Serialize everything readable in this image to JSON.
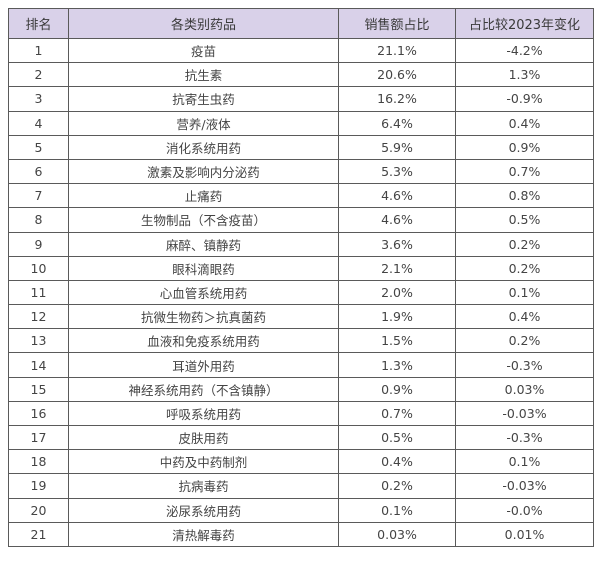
{
  "table": {
    "headers": [
      "排名",
      "各类别药品",
      "销售额占比",
      "占比较2023年变化"
    ],
    "rows": [
      {
        "rank": "1",
        "category": "疫苗",
        "share": "21.1%",
        "change": "-4.2%"
      },
      {
        "rank": "2",
        "category": "抗生素",
        "share": "20.6%",
        "change": "1.3%"
      },
      {
        "rank": "3",
        "category": "抗寄生虫药",
        "share": "16.2%",
        "change": "-0.9%"
      },
      {
        "rank": "4",
        "category": "营养/液体",
        "share": "6.4%",
        "change": "0.4%"
      },
      {
        "rank": "5",
        "category": "消化系统用药",
        "share": "5.9%",
        "change": "0.9%"
      },
      {
        "rank": "6",
        "category": "激素及影响内分泌药",
        "share": "5.3%",
        "change": "0.7%"
      },
      {
        "rank": "7",
        "category": "止痛药",
        "share": "4.6%",
        "change": "0.8%"
      },
      {
        "rank": "8",
        "category": "生物制品（不含疫苗）",
        "share": "4.6%",
        "change": "0.5%"
      },
      {
        "rank": "9",
        "category": "麻醉、镇静药",
        "share": "3.6%",
        "change": "0.2%"
      },
      {
        "rank": "10",
        "category": "眼科滴眼药",
        "share": "2.1%",
        "change": "0.2%"
      },
      {
        "rank": "11",
        "category": "心血管系统用药",
        "share": "2.0%",
        "change": "0.1%"
      },
      {
        "rank": "12",
        "category": "抗微生物药＞抗真菌药",
        "share": "1.9%",
        "change": "0.4%"
      },
      {
        "rank": "13",
        "category": "血液和免疫系统用药",
        "share": "1.5%",
        "change": "0.2%"
      },
      {
        "rank": "14",
        "category": "耳道外用药",
        "share": "1.3%",
        "change": "-0.3%"
      },
      {
        "rank": "15",
        "category": "神经系统用药（不含镇静）",
        "share": "0.9%",
        "change": "0.03%"
      },
      {
        "rank": "16",
        "category": "呼吸系统用药",
        "share": "0.7%",
        "change": "-0.03%"
      },
      {
        "rank": "17",
        "category": "皮肤用药",
        "share": "0.5%",
        "change": "-0.3%"
      },
      {
        "rank": "18",
        "category": "中药及中药制剂",
        "share": "0.4%",
        "change": "0.1%"
      },
      {
        "rank": "19",
        "category": "抗病毒药",
        "share": "0.2%",
        "change": "-0.03%"
      },
      {
        "rank": "20",
        "category": "泌尿系统用药",
        "share": "0.1%",
        "change": "-0.0%"
      },
      {
        "rank": "21",
        "category": "清热解毒药",
        "share": "0.03%",
        "change": "0.01%"
      }
    ]
  },
  "colors": {
    "header_bg": "#d9d1e9",
    "border": "#5a5a5a",
    "text": "#444444"
  }
}
